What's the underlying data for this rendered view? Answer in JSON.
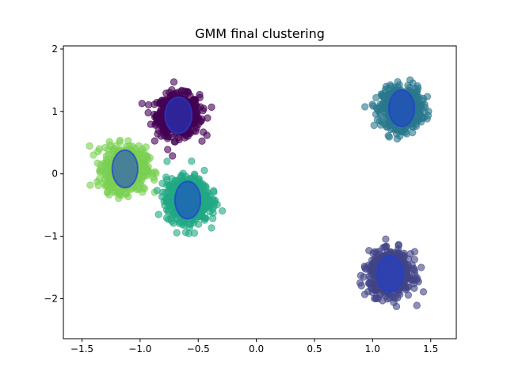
{
  "chart_data": {
    "type": "scatter",
    "title": "GMM final clustering",
    "xlabel": "",
    "ylabel": "",
    "xlim": [
      -1.66,
      1.72
    ],
    "ylim": [
      -2.64,
      2.05
    ],
    "xticks": [
      -1.5,
      -1.0,
      -0.5,
      0.0,
      0.5,
      1.0,
      1.5
    ],
    "xtick_labels": [
      "−1.5",
      "−1.0",
      "−0.5",
      "0.0",
      "0.5",
      "1.0",
      "1.5"
    ],
    "yticks": [
      -2,
      -1,
      0,
      1,
      2
    ],
    "ytick_labels": [
      "−2",
      "−1",
      "0",
      "1",
      "2"
    ],
    "grid": false,
    "legend": "none",
    "clusters": [
      {
        "center": [
          -0.67,
          0.94
        ],
        "spread": [
          0.15,
          0.27
        ],
        "color": "#440154",
        "ellipse_width": 0.23,
        "ellipse_height": 0.58
      },
      {
        "center": [
          1.25,
          1.05
        ],
        "spread": [
          0.14,
          0.26
        ],
        "color": "#2a788e",
        "ellipse_width": 0.22,
        "ellipse_height": 0.58
      },
      {
        "center": [
          -1.13,
          0.08
        ],
        "spread": [
          0.15,
          0.29
        ],
        "color": "#7ad151",
        "ellipse_width": 0.22,
        "ellipse_height": 0.6
      },
      {
        "center": [
          -0.59,
          -0.42
        ],
        "spread": [
          0.15,
          0.29
        ],
        "color": "#22a884",
        "ellipse_width": 0.22,
        "ellipse_height": 0.6
      },
      {
        "center": [
          1.15,
          -1.6
        ],
        "spread": [
          0.15,
          0.28
        ],
        "color": "#414487",
        "ellipse_width": 0.22,
        "ellipse_height": 0.58
      }
    ],
    "ellipse_color": "#1f3fd1"
  }
}
